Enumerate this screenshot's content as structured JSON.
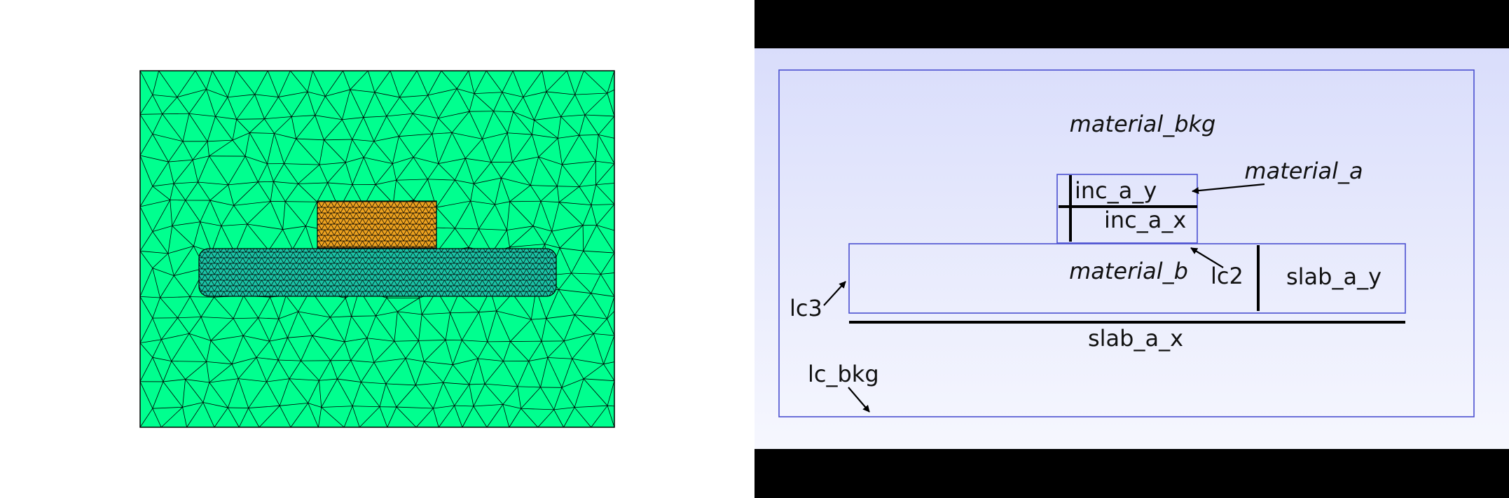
{
  "mesh": {
    "colors": {
      "background": "#00ff8f",
      "inclusion": "#eda21f",
      "slab": "#1bc3a6",
      "edges": "#000000"
    }
  },
  "schematic": {
    "labels": {
      "material_bkg": "material_bkg",
      "material_a": "material_a",
      "material_b": "material_b",
      "inc_a_y": "inc_a_y",
      "inc_a_x": "inc_a_x",
      "slab_a_y": "slab_a_y",
      "slab_a_x": "slab_a_x",
      "lc2": "lc2",
      "lc3": "lc3",
      "lc_bkg": "lc_bkg"
    },
    "colors": {
      "gradient_top": "#d9ddfb",
      "gradient_bottom": "#f6f7fe",
      "outline": "#4a4fd0",
      "bars": "#000000"
    }
  }
}
